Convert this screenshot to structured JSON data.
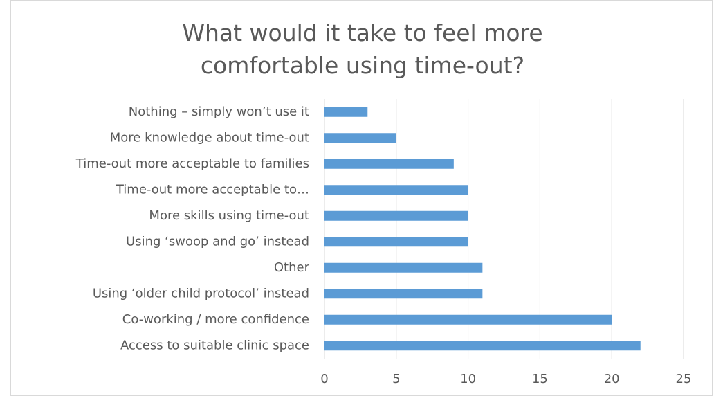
{
  "chart_data": {
    "type": "barh",
    "title": "What would it take to feel more comfortable using time-out?",
    "categories": [
      "Nothing – simply won’t use it",
      "More knowledge about time-out",
      "Time-out more acceptable to families",
      "Time-out more acceptable to…",
      "More skills using time-out",
      "Using ‘swoop and go’ instead",
      "Other",
      "Using ‘older child protocol’ instead",
      "Co-working / more confidence",
      "Access to suitable clinic space"
    ],
    "values": [
      3,
      5,
      9,
      10,
      10,
      10,
      11,
      11,
      20,
      22
    ],
    "color": "#5b9bd5",
    "xlim": [
      0,
      25
    ],
    "xticks": [
      0,
      5,
      10,
      15,
      20,
      25
    ],
    "grid": true
  }
}
